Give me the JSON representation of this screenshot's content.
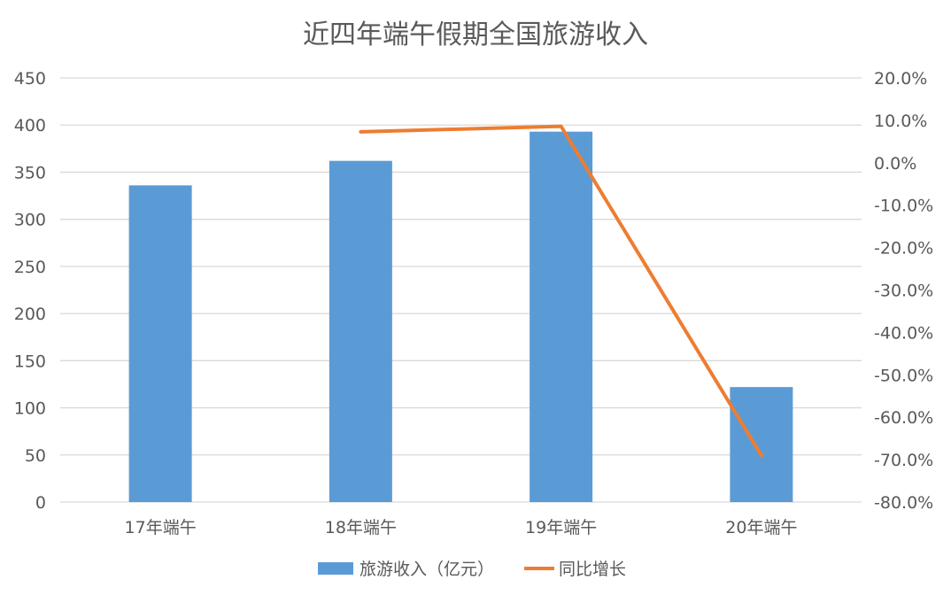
{
  "chart_data": {
    "type": "bar",
    "title": "近四年端午假期全国旅游收入",
    "categories": [
      "17年端午",
      "18年端午",
      "19年端午",
      "20年端午"
    ],
    "series": [
      {
        "name": "旅游收入（亿元）",
        "type": "bar",
        "axis": "left",
        "color": "#5B9BD5",
        "values": [
          336,
          362,
          393,
          122
        ]
      },
      {
        "name": "同比增长",
        "type": "line",
        "axis": "right",
        "color": "#ED7D31",
        "values": [
          null,
          7.3,
          8.6,
          -69
        ]
      }
    ],
    "y_left": {
      "ylim": [
        0,
        450
      ],
      "ticks": [
        "0",
        "50",
        "100",
        "150",
        "200",
        "250",
        "300",
        "350",
        "400",
        "450"
      ]
    },
    "y_right": {
      "ylim": [
        -80,
        20
      ],
      "ticks": [
        "-80.0%",
        "-70.0%",
        "-60.0%",
        "-50.0%",
        "-40.0%",
        "-30.0%",
        "-20.0%",
        "-10.0%",
        "0.0%",
        "10.0%",
        "20.0%"
      ]
    },
    "grid": true,
    "legend_position": "bottom"
  }
}
